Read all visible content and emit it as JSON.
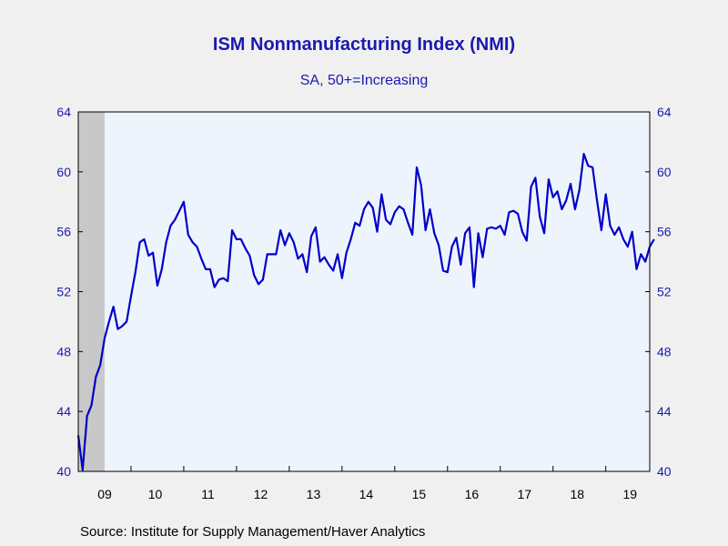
{
  "chart_data": {
    "type": "line",
    "title": "ISM Nonmanufacturing Index (NMI)",
    "subtitle": "SA, 50+=Increasing",
    "source": "Source:  Institute for Supply Management/Haver Analytics",
    "ylim": [
      40,
      64
    ],
    "yticks": [
      40,
      44,
      48,
      52,
      56,
      60,
      64
    ],
    "xlim": [
      "2009-01",
      "2019-11"
    ],
    "xtick_labels": [
      "09",
      "10",
      "11",
      "12",
      "13",
      "14",
      "15",
      "16",
      "17",
      "18",
      "19"
    ],
    "recession_shade": [
      "2009-01",
      "2009-06"
    ],
    "dual_y_axis": true,
    "colors": {
      "line": "#0000c8",
      "plot_bg": "#eef4fc",
      "recession": "#c8c8c8",
      "text": "#1a1ab0"
    },
    "series": [
      {
        "x_start": "2009-01",
        "x_step": "month",
        "values": [
          42.4,
          40.1,
          43.7,
          44.4,
          46.3,
          47.1,
          48.9,
          50.0,
          51.0,
          49.5,
          49.7,
          50.0,
          51.7,
          53.3,
          55.3,
          55.5,
          54.4,
          54.6,
          52.4,
          53.5,
          55.3,
          56.4,
          56.8,
          57.4,
          58.0,
          55.8,
          55.3,
          55.0,
          54.2,
          53.5,
          53.5,
          52.3,
          52.8,
          52.9,
          52.7,
          56.1,
          55.5,
          55.5,
          54.9,
          54.4,
          53.1,
          52.5,
          52.8,
          54.5,
          54.5,
          54.5,
          56.1,
          55.1,
          55.9,
          55.3,
          54.2,
          54.5,
          53.3,
          55.7,
          56.3,
          54.0,
          54.3,
          53.8,
          53.4,
          54.5,
          52.9,
          54.6,
          55.5,
          56.6,
          56.4,
          57.5,
          58.0,
          57.6,
          56.0,
          58.5,
          56.8,
          56.5,
          57.3,
          57.7,
          57.5,
          56.6,
          55.8,
          60.3,
          59.1,
          56.1,
          57.5,
          55.9,
          55.1,
          53.4,
          53.3,
          55.0,
          55.6,
          53.8,
          55.9,
          56.3,
          52.3,
          55.9,
          54.3,
          56.2,
          56.3,
          56.2,
          56.4,
          55.8,
          57.3,
          57.4,
          57.2,
          56.0,
          55.4,
          59.0,
          59.6,
          57.0,
          55.9,
          59.5,
          58.3,
          58.7,
          57.5,
          58.1,
          59.2,
          57.5,
          58.8,
          61.2,
          60.4,
          60.3,
          58.1,
          56.1,
          58.5,
          56.4,
          55.8,
          56.3,
          55.5,
          55.0,
          56.0,
          53.5,
          54.5,
          54.0,
          55.0,
          55.5
        ]
      }
    ]
  }
}
